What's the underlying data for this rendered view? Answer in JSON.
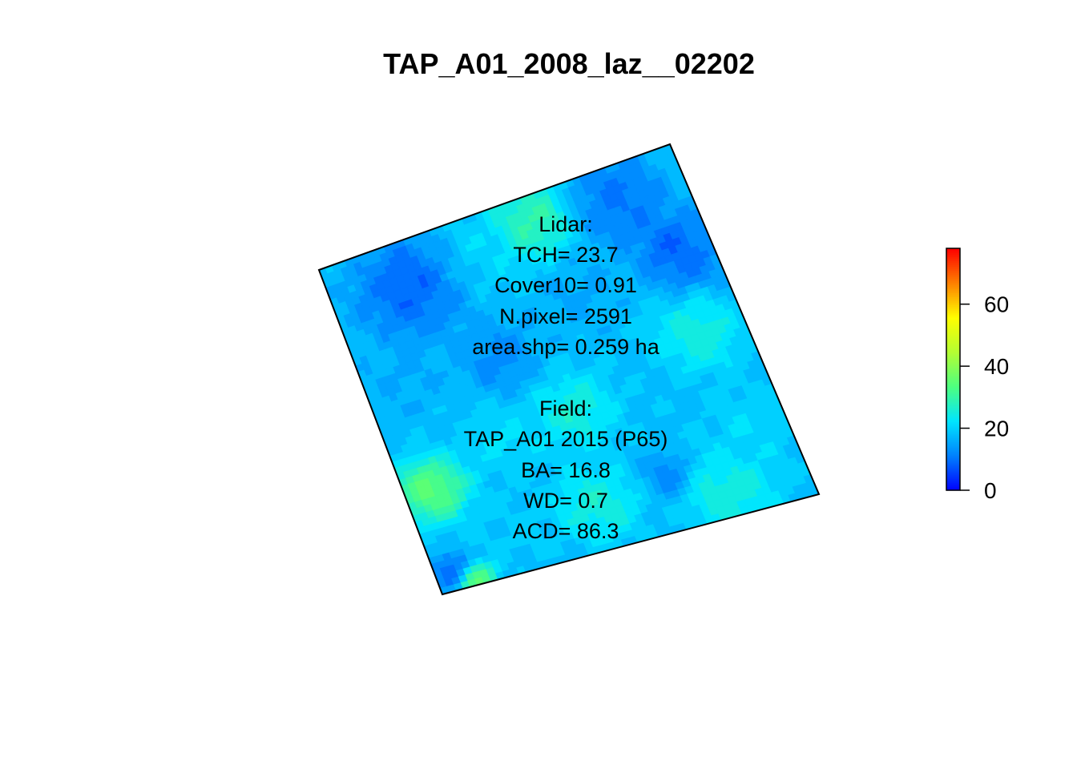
{
  "chart_data": {
    "type": "heatmap",
    "title": "TAP_A01_2008_laz__02202",
    "xlabel": "",
    "ylabel": "",
    "palette": [
      "#0000ff",
      "#0080ff",
      "#00e5ff",
      "#4dff80",
      "#b3ff33",
      "#ffff00",
      "#ff8000",
      "#ff0000"
    ],
    "colorbar": {
      "min": 0,
      "max": 78,
      "ticks": [
        0,
        20,
        40,
        60
      ],
      "tick_labels": [
        "0",
        "20",
        "40",
        "60"
      ],
      "placement": "right"
    },
    "regions": [
      {
        "u": 0.5,
        "v": 0.5,
        "value": 18,
        "spread": 0.9
      },
      {
        "u": 0.22,
        "v": 0.15,
        "value": 5,
        "spread": 0.18
      },
      {
        "u": 0.12,
        "v": 0.38,
        "value": 15,
        "spread": 0.14
      },
      {
        "u": 0.42,
        "v": 0.12,
        "value": 22,
        "spread": 0.14
      },
      {
        "u": 0.58,
        "v": 0.08,
        "value": 35,
        "spread": 0.14
      },
      {
        "u": 0.8,
        "v": 0.1,
        "value": 8,
        "spread": 0.16
      },
      {
        "u": 0.9,
        "v": 0.28,
        "value": 5,
        "spread": 0.14
      },
      {
        "u": 0.36,
        "v": 0.4,
        "value": 8,
        "spread": 0.14
      },
      {
        "u": 0.62,
        "v": 0.3,
        "value": 14,
        "spread": 0.14
      },
      {
        "u": 0.86,
        "v": 0.5,
        "value": 30,
        "spread": 0.14
      },
      {
        "u": 0.08,
        "v": 0.7,
        "value": 42,
        "spread": 0.12
      },
      {
        "u": 0.3,
        "v": 0.62,
        "value": 24,
        "spread": 0.14
      },
      {
        "u": 0.5,
        "v": 0.6,
        "value": 33,
        "spread": 0.14
      },
      {
        "u": 0.72,
        "v": 0.62,
        "value": 18,
        "spread": 0.14
      },
      {
        "u": 0.9,
        "v": 0.78,
        "value": 22,
        "spread": 0.14
      },
      {
        "u": 0.24,
        "v": 0.86,
        "value": 20,
        "spread": 0.14
      },
      {
        "u": 0.46,
        "v": 0.86,
        "value": 30,
        "spread": 0.14
      },
      {
        "u": 0.66,
        "v": 0.84,
        "value": 8,
        "spread": 0.08
      },
      {
        "u": 0.78,
        "v": 0.92,
        "value": 28,
        "spread": 0.14
      },
      {
        "u": 0.05,
        "v": 0.94,
        "value": 6,
        "spread": 0.06
      },
      {
        "u": 0.1,
        "v": 0.98,
        "value": 38,
        "spread": 0.06
      }
    ]
  },
  "annotations": {
    "lidar": [
      "Lidar:",
      "TCH= 23.7",
      "Cover10= 0.91",
      "N.pixel= 2591",
      "area.shp= 0.259 ha"
    ],
    "field": [
      "Field:",
      "TAP_A01 2015 (P65)",
      "BA= 16.8",
      "WD= 0.7",
      "ACD= 86.3"
    ]
  }
}
